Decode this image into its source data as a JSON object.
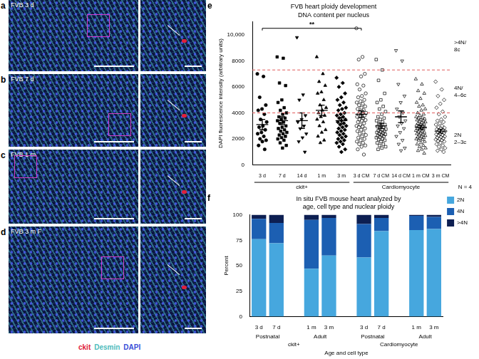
{
  "image_panels": [
    {
      "letter": "a",
      "label": "FVB 3 d"
    },
    {
      "letter": "b",
      "label": "FVB 7 d"
    },
    {
      "letter": "c",
      "label": "FVB 1 m"
    },
    {
      "letter": "d",
      "label": "FVB 3 m F"
    }
  ],
  "stain_legend": [
    {
      "label": "ckit",
      "color": "#e0203a"
    },
    {
      "label": "Desmin",
      "color": "#4fbcbc"
    },
    {
      "label": "DAPI",
      "color": "#3a4fd8"
    }
  ],
  "chart_data": [
    {
      "panel": "e",
      "type": "scatter",
      "title": "FVB heart ploidy development",
      "subtitle": "DNA content per nucleus",
      "y_label": "DAPI fluorescence intensity (arbitrary units)",
      "color": "#000000",
      "series": [
        {
          "name": "3 d",
          "marker": "circle",
          "mean": 3100,
          "sem": 400,
          "values": [
            7000,
            6800,
            5200,
            4600,
            4300,
            4200,
            3900,
            3500,
            3300,
            3000,
            2900,
            2700,
            2500,
            2400,
            2200,
            2000,
            1900,
            1800,
            1500,
            1200
          ]
        },
        {
          "name": "7 d",
          "marker": "square",
          "mean": 3400,
          "sem": 300,
          "values": [
            8300,
            8200,
            6300,
            6100,
            5000,
            4800,
            4400,
            4200,
            4000,
            3900,
            3700,
            3600,
            3500,
            3400,
            3300,
            3200,
            3000,
            2900,
            2800,
            2700,
            2600,
            2500,
            2400,
            2300,
            2200,
            2100,
            2000,
            1900,
            1700,
            1500,
            1300
          ]
        },
        {
          "name": "14 d",
          "marker": "triangle-down",
          "mean": 3400,
          "sem": 600,
          "values": [
            9800,
            5400,
            5000,
            3800,
            3500,
            3300,
            3000,
            2800,
            2400,
            2100,
            1800,
            1000
          ]
        },
        {
          "name": "1 m",
          "marker": "triangle-up",
          "mean": 4200,
          "sem": 400,
          "values": [
            8300,
            7000,
            6400,
            6100,
            5600,
            5500,
            5000,
            4600,
            4400,
            4200,
            4000,
            3800,
            3700,
            3500,
            3300,
            3000,
            2700,
            2500,
            2200,
            1900,
            1700
          ]
        },
        {
          "name": "3 m",
          "marker": "diamond",
          "mean": 3400,
          "sem": 250,
          "values": [
            6700,
            6300,
            6000,
            5500,
            5200,
            5000,
            4800,
            4600,
            4400,
            4300,
            4200,
            4000,
            3900,
            3800,
            3700,
            3600,
            3500,
            3400,
            3300,
            3200,
            3100,
            3000,
            2900,
            2800,
            2700,
            2600,
            2500,
            2400,
            2300,
            2200,
            2100,
            2000,
            1900,
            1800,
            1700,
            1600,
            1400,
            1200,
            1000
          ]
        },
        {
          "name": "3 d CM",
          "marker": "circle-open",
          "mean": 3900,
          "sem": 250,
          "values": [
            10500,
            8300,
            8100,
            7000,
            6800,
            6200,
            6100,
            5800,
            5500,
            5300,
            5200,
            5000,
            4900,
            4800,
            4700,
            4600,
            4500,
            4400,
            4300,
            4200,
            4100,
            4000,
            3950,
            3900,
            3800,
            3750,
            3700,
            3600,
            3500,
            3450,
            3400,
            3300,
            3200,
            3100,
            3000,
            2950,
            2900,
            2800,
            2700,
            2600,
            2500,
            2400,
            2300,
            2200,
            2100,
            2000,
            1900,
            1800,
            1700,
            1600,
            1500,
            1400,
            1200,
            800
          ]
        },
        {
          "name": "7 d CM",
          "marker": "square-open",
          "mean": 3000,
          "sem": 200,
          "values": [
            8100,
            7300,
            6500,
            5500,
            5000,
            4800,
            4500,
            4300,
            4100,
            3900,
            3700,
            3600,
            3500,
            3400,
            3300,
            3200,
            3100,
            3000,
            2950,
            2900,
            2800,
            2750,
            2700,
            2650,
            2600,
            2550,
            2500,
            2450,
            2400,
            2350,
            2300,
            2250,
            2200,
            2150,
            2100,
            2000,
            1950,
            1900,
            1800,
            1700,
            1600,
            1500,
            1400,
            1300,
            1200
          ]
        },
        {
          "name": "14 d CM",
          "marker": "triangle-down-open",
          "mean": 3700,
          "sem": 450,
          "values": [
            8800,
            8000,
            6200,
            5300,
            4800,
            4300,
            4000,
            3700,
            3400,
            3200,
            3000,
            2800,
            2500,
            2200,
            1900,
            1600,
            1300,
            1100
          ]
        },
        {
          "name": "1 m CM",
          "marker": "triangle-up-open",
          "mean": 2900,
          "sem": 150,
          "values": [
            6600,
            6200,
            5700,
            5500,
            5100,
            4800,
            4600,
            4500,
            4300,
            4200,
            4000,
            3900,
            3800,
            3700,
            3650,
            3600,
            3550,
            3500,
            3450,
            3400,
            3350,
            3300,
            3250,
            3200,
            3150,
            3100,
            3050,
            3000,
            2950,
            2900,
            2850,
            2800,
            2750,
            2700,
            2650,
            2600,
            2550,
            2500,
            2450,
            2400,
            2350,
            2300,
            2250,
            2200,
            2150,
            2100,
            2050,
            2000,
            1950,
            1900,
            1800,
            1700,
            1600,
            1500,
            1400,
            1300,
            1200,
            1100,
            900
          ]
        },
        {
          "name": "3 m CM",
          "marker": "diamond-open",
          "mean": 2600,
          "sem": 150,
          "values": [
            6400,
            5800,
            5300,
            5000,
            4700,
            4400,
            4100,
            3900,
            3700,
            3500,
            3400,
            3300,
            3200,
            3100,
            3000,
            2900,
            2850,
            2800,
            2750,
            2700,
            2650,
            2600,
            2550,
            2500,
            2450,
            2400,
            2350,
            2300,
            2250,
            2200,
            2150,
            2100,
            2050,
            2000,
            1950,
            1900,
            1850,
            1800,
            1700,
            1600,
            1500,
            1400,
            1300,
            1200,
            1100,
            1000
          ]
        }
      ],
      "cell_types": [
        "ckit+",
        "ckit+",
        "ckit+",
        "ckit+",
        "ckit+",
        "Cardiomyocyte",
        "Cardiomyocyte",
        "Cardiomyocyte",
        "Cardiomyocyte",
        "Cardiomyocyte"
      ],
      "n_label": "N = 4",
      "ylim": [
        0,
        11000
      ],
      "yticks": [
        0,
        2000,
        4000,
        6000,
        8000,
        {
          "value": 10000,
          "label": "10,000"
        }
      ],
      "grid": false,
      "reference_lines": [
        {
          "value": 4000,
          "color": "#e05a5a",
          "line_style": "dashed"
        },
        {
          "value": 7300,
          "color": "#e05a5a",
          "line_style": "dashed"
        }
      ],
      "region_labels": [
        "2N 2–3c",
        "4N/ 4–6c",
        ">4N/ 8c"
      ],
      "significance": [
        {
          "from": "3 d",
          "to": "3 d CM",
          "value": 10500,
          "label": "**"
        }
      ]
    },
    {
      "panel": "f",
      "type": "bar",
      "stacked": true,
      "title": "In situ FVB mouse heart analyzed by age, cell type and nuclear ploidy",
      "y_label": "Percent",
      "x_label": "Age and cell type",
      "categories": [
        "3 d",
        "7 d",
        null,
        "1 m",
        "3 m",
        null,
        "3 d",
        "7 d",
        null,
        "1 m",
        "3 m"
      ],
      "age_groups": [
        "Postnatal",
        "Postnatal",
        null,
        "Adult",
        "Adult",
        null,
        "Postnatal",
        "Postnatal",
        null,
        "Adult",
        "Adult"
      ],
      "cell_types": [
        "ckit+",
        "ckit+",
        "ckit+",
        "ckit+",
        "ckit+",
        null,
        "Cardiomyocyte",
        "Cardiomyocyte",
        "Cardiomyocyte",
        "Cardiomyocyte",
        "Cardiomyocyte"
      ],
      "series": [
        {
          "name": "2N",
          "color": "#46a7de",
          "values": [
            76,
            72,
            null,
            47,
            60,
            null,
            58,
            84,
            null,
            85,
            86
          ]
        },
        {
          "name": "4N",
          "color": "#1c5fb2",
          "values": [
            20,
            20,
            null,
            48,
            37,
            null,
            33,
            13,
            null,
            14,
            12
          ]
        },
        {
          "name": ">4N",
          "color": "#0d1f52",
          "values": [
            4,
            8,
            null,
            5,
            3,
            null,
            9,
            3,
            null,
            1,
            2
          ]
        }
      ],
      "ylim": [
        0,
        100
      ],
      "yticks": [
        0,
        25,
        50,
        75,
        100
      ],
      "legend": "right",
      "grid": false
    }
  ]
}
